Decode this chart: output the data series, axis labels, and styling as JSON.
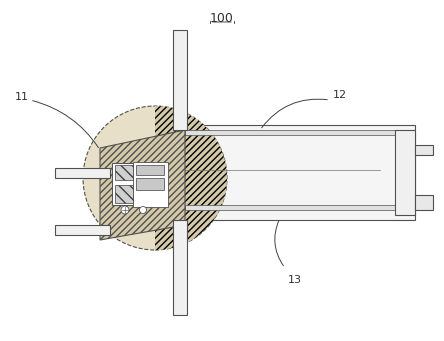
{
  "title": "100",
  "label_11": "11",
  "label_12": "12",
  "label_13": "13",
  "bg_color": "#ffffff",
  "line_color": "#808080",
  "hatch_color": "#aaaaaa",
  "fig_width": 4.44,
  "fig_height": 3.41,
  "dpi": 100
}
